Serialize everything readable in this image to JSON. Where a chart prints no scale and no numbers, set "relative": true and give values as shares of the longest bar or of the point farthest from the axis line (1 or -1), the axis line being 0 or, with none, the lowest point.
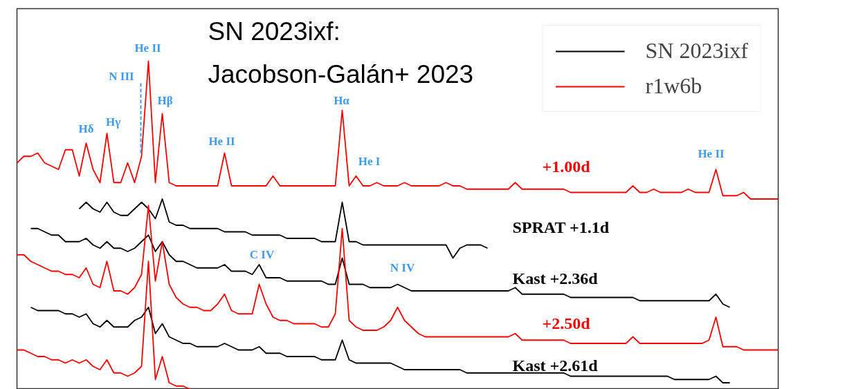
{
  "chart_data": {
    "type": "line",
    "relative": true,
    "legend": "top right",
    "title": "SN 2023ixf:\nJacobson-Galán+ 2023",
    "categories": [
      null,
      null,
      null,
      null,
      null,
      null,
      null,
      null,
      null,
      null,
      null,
      null,
      null,
      null,
      null,
      null,
      null,
      null,
      null,
      null,
      null,
      null,
      null,
      null,
      null,
      null,
      null,
      null,
      null,
      null,
      null,
      null,
      null,
      null,
      null,
      null,
      null,
      null,
      null,
      null,
      null,
      null,
      null,
      null,
      null,
      null,
      null,
      null,
      null,
      null,
      null,
      null,
      null,
      null,
      null,
      null,
      null,
      null,
      null,
      null,
      null,
      null,
      null,
      null,
      null,
      null,
      null,
      null,
      null,
      null,
      null,
      null,
      null,
      null,
      null,
      null,
      null,
      null,
      null,
      null,
      null,
      null,
      null,
      null,
      null,
      null,
      null,
      null,
      null,
      null,
      null,
      null,
      null,
      null,
      null,
      null,
      null,
      null,
      null,
      null,
      null,
      null,
      null,
      null,
      null,
      null,
      null,
      null,
      null,
      null,
      null
    ],
    "series": [
      {
        "name": "SN 2023ixf",
        "color": "#000000",
        "values": [
          null,
          null,
          null,
          null,
          null,
          null,
          null,
          null,
          null,
          0.55,
          0.57,
          0.55,
          0.54,
          0.57,
          0.54,
          0.53,
          0.53,
          0.55,
          0.57,
          0.55,
          0.52,
          0.58,
          0.51,
          0.5,
          0.5,
          0.49,
          0.49,
          0.49,
          0.49,
          0.49,
          0.48,
          0.48,
          0.48,
          0.48,
          0.47,
          0.47,
          0.47,
          0.47,
          0.47,
          0.46,
          0.46,
          0.46,
          0.46,
          0.46,
          0.45,
          0.45,
          0.45,
          0.57,
          0.45,
          0.45,
          0.44,
          0.44,
          0.44,
          0.44,
          0.44,
          0.44,
          0.44,
          0.44,
          0.44,
          0.44,
          0.44,
          0.44,
          0.44,
          0.4,
          0.43,
          0.44,
          0.44,
          0.44,
          0.43,
          null,
          null,
          null,
          null,
          null,
          null,
          null,
          null,
          null,
          null,
          null,
          null,
          null,
          null,
          null,
          null,
          null,
          null,
          null,
          null,
          null,
          null,
          null,
          null,
          null,
          null,
          null,
          null,
          null,
          null,
          null,
          null,
          null,
          null,
          null,
          null,
          null,
          null,
          null,
          null,
          null,
          null
        ]
      },
      {
        "name": "r1w6b",
        "color": "#ff0000",
        "values": [
          0.69,
          0.71,
          0.71,
          0.72,
          0.69,
          0.68,
          0.67,
          0.73,
          0.73,
          0.65,
          0.75,
          0.67,
          0.63,
          0.78,
          0.63,
          0.63,
          0.69,
          0.63,
          0.71,
          1.0,
          0.63,
          0.84,
          0.63,
          0.62,
          0.62,
          0.62,
          0.62,
          0.62,
          0.62,
          0.62,
          0.72,
          0.62,
          0.62,
          0.62,
          0.62,
          0.62,
          0.62,
          0.65,
          0.62,
          0.62,
          0.62,
          0.62,
          0.62,
          0.62,
          0.62,
          0.62,
          0.62,
          0.85,
          0.62,
          0.65,
          0.62,
          0.62,
          0.63,
          0.62,
          0.62,
          0.62,
          0.63,
          0.62,
          0.62,
          0.62,
          0.62,
          0.62,
          0.63,
          0.62,
          0.62,
          0.61,
          0.61,
          0.61,
          0.61,
          0.61,
          0.61,
          0.61,
          0.63,
          0.61,
          0.61,
          0.61,
          0.61,
          0.61,
          0.61,
          0.61,
          0.6,
          0.6,
          0.6,
          0.6,
          0.6,
          0.6,
          0.6,
          0.6,
          0.6,
          0.62,
          0.6,
          0.6,
          0.61,
          0.6,
          0.6,
          0.6,
          0.6,
          0.61,
          0.6,
          0.6,
          0.6,
          0.67,
          0.59,
          0.59,
          0.59,
          0.6,
          0.58,
          0.58,
          0.58,
          0.58,
          0.58
        ]
      },
      {
        "color": "#000000",
        "values": [
          null,
          null,
          0.49,
          0.49,
          0.48,
          0.47,
          0.47,
          0.45,
          0.45,
          0.45,
          0.46,
          0.44,
          0.43,
          0.45,
          0.43,
          0.43,
          0.42,
          0.43,
          0.45,
          0.47,
          0.42,
          0.45,
          0.41,
          0.39,
          0.39,
          0.38,
          0.37,
          0.37,
          0.37,
          0.37,
          0.38,
          0.36,
          0.36,
          0.36,
          0.35,
          0.38,
          0.34,
          0.34,
          0.34,
          0.33,
          0.33,
          0.33,
          0.33,
          0.33,
          0.33,
          0.32,
          0.32,
          0.4,
          0.32,
          0.32,
          0.32,
          0.31,
          0.31,
          0.31,
          0.31,
          0.32,
          0.31,
          0.3,
          0.3,
          0.3,
          0.3,
          0.3,
          0.3,
          0.3,
          0.3,
          0.3,
          0.3,
          0.3,
          0.3,
          0.3,
          0.3,
          0.3,
          0.31,
          0.29,
          0.29,
          0.29,
          0.29,
          0.29,
          0.29,
          0.29,
          0.28,
          0.28,
          0.28,
          0.28,
          0.28,
          0.28,
          0.28,
          0.28,
          0.28,
          0.28,
          0.27,
          0.27,
          0.27,
          0.27,
          0.27,
          0.27,
          0.27,
          0.27,
          0.27,
          0.27,
          0.27,
          0.29,
          0.26,
          0.25,
          null,
          null,
          null,
          null,
          null,
          null,
          null
        ]
      },
      {
        "color": "#ff0000",
        "values": [
          0.41,
          0.41,
          0.39,
          0.38,
          0.37,
          0.36,
          0.36,
          0.35,
          0.35,
          0.34,
          0.37,
          0.32,
          0.31,
          0.39,
          0.3,
          0.3,
          0.29,
          0.31,
          0.35,
          0.56,
          0.33,
          0.45,
          0.32,
          0.28,
          0.26,
          0.25,
          0.25,
          0.24,
          0.24,
          0.26,
          0.29,
          0.24,
          0.23,
          0.23,
          0.23,
          0.32,
          0.26,
          0.22,
          0.21,
          0.21,
          0.2,
          0.2,
          0.2,
          0.2,
          0.19,
          0.19,
          0.23,
          0.49,
          0.21,
          0.19,
          0.18,
          0.18,
          0.18,
          0.19,
          0.21,
          0.25,
          0.21,
          0.19,
          0.17,
          0.16,
          0.16,
          0.16,
          0.16,
          0.16,
          0.16,
          0.16,
          0.16,
          0.16,
          0.16,
          0.16,
          0.16,
          0.16,
          0.17,
          0.15,
          0.15,
          0.15,
          0.15,
          0.15,
          0.15,
          0.15,
          0.14,
          0.14,
          0.14,
          0.14,
          0.14,
          0.14,
          0.14,
          0.14,
          0.14,
          0.16,
          0.14,
          0.14,
          0.14,
          0.14,
          0.14,
          0.14,
          0.14,
          0.14,
          0.14,
          0.14,
          0.15,
          0.22,
          0.13,
          0.13,
          0.13,
          0.12,
          0.12,
          0.12,
          0.12,
          0.12,
          0.12
        ]
      },
      {
        "color": "#000000",
        "values": [
          null,
          null,
          0.25,
          0.24,
          0.24,
          0.24,
          0.24,
          0.23,
          0.23,
          0.22,
          0.23,
          0.2,
          0.19,
          0.21,
          0.19,
          0.19,
          0.19,
          0.21,
          0.22,
          0.25,
          0.17,
          0.2,
          0.16,
          0.15,
          0.14,
          0.14,
          0.13,
          0.13,
          0.13,
          0.13,
          0.14,
          0.13,
          0.12,
          0.12,
          0.12,
          0.13,
          0.11,
          0.11,
          0.11,
          0.1,
          0.1,
          0.1,
          0.1,
          0.1,
          0.09,
          0.09,
          0.09,
          0.15,
          0.09,
          0.08,
          0.08,
          0.08,
          0.08,
          0.08,
          0.08,
          0.07,
          0.06,
          0.06,
          0.06,
          0.06,
          0.06,
          0.06,
          0.06,
          0.06,
          0.06,
          0.05,
          0.05,
          0.05,
          0.05,
          0.05,
          0.05,
          0.05,
          0.05,
          0.05,
          0.05,
          0.05,
          0.05,
          0.05,
          0.05,
          0.05,
          0.04,
          0.04,
          0.04,
          0.04,
          0.04,
          0.04,
          0.04,
          0.04,
          0.04,
          0.04,
          0.04,
          0.04,
          0.04,
          0.04,
          0.04,
          0.03,
          0.03,
          0.03,
          0.03,
          0.03,
          0.03,
          0.04,
          0.02,
          0.02,
          null,
          null,
          null,
          null,
          null,
          null,
          null
        ]
      },
      {
        "color": "#ff0000",
        "values": [
          0.12,
          0.12,
          0.11,
          0.1,
          0.1,
          0.09,
          0.09,
          0.08,
          0.09,
          0.08,
          0.09,
          0.07,
          0.06,
          0.09,
          0.05,
          0.05,
          0.04,
          0.05,
          0.07,
          0.39,
          0.03,
          0.1,
          0.02,
          0.01,
          0.01,
          0,
          null,
          null,
          null,
          null,
          null,
          null,
          null,
          null,
          null,
          null,
          null,
          null,
          null,
          null,
          null,
          null,
          null,
          null,
          null,
          null,
          null,
          null,
          null,
          null,
          null,
          null,
          null,
          null,
          null,
          null,
          null,
          null,
          null,
          null,
          null,
          null,
          null,
          null,
          null,
          null,
          null,
          null,
          null,
          null,
          null,
          null,
          null,
          null,
          null,
          null,
          null,
          null,
          null,
          null,
          null,
          null,
          null,
          null,
          null,
          null,
          null,
          null,
          null,
          null,
          null,
          null,
          null,
          null,
          null,
          null,
          null,
          null,
          null,
          null,
          null,
          null,
          null,
          null,
          null,
          null,
          null,
          null,
          null,
          null,
          null
        ]
      }
    ],
    "annotations": [
      "He II",
      "N III",
      "Hδ",
      "Hγ",
      "Hβ",
      "He II",
      "Hα",
      "He I",
      "He II",
      "C IV",
      "N IV",
      "+1.00d",
      "SPRAT +1.1d",
      "Kast +2.36d",
      "+2.50d",
      "Kast +2.61d"
    ]
  }
}
